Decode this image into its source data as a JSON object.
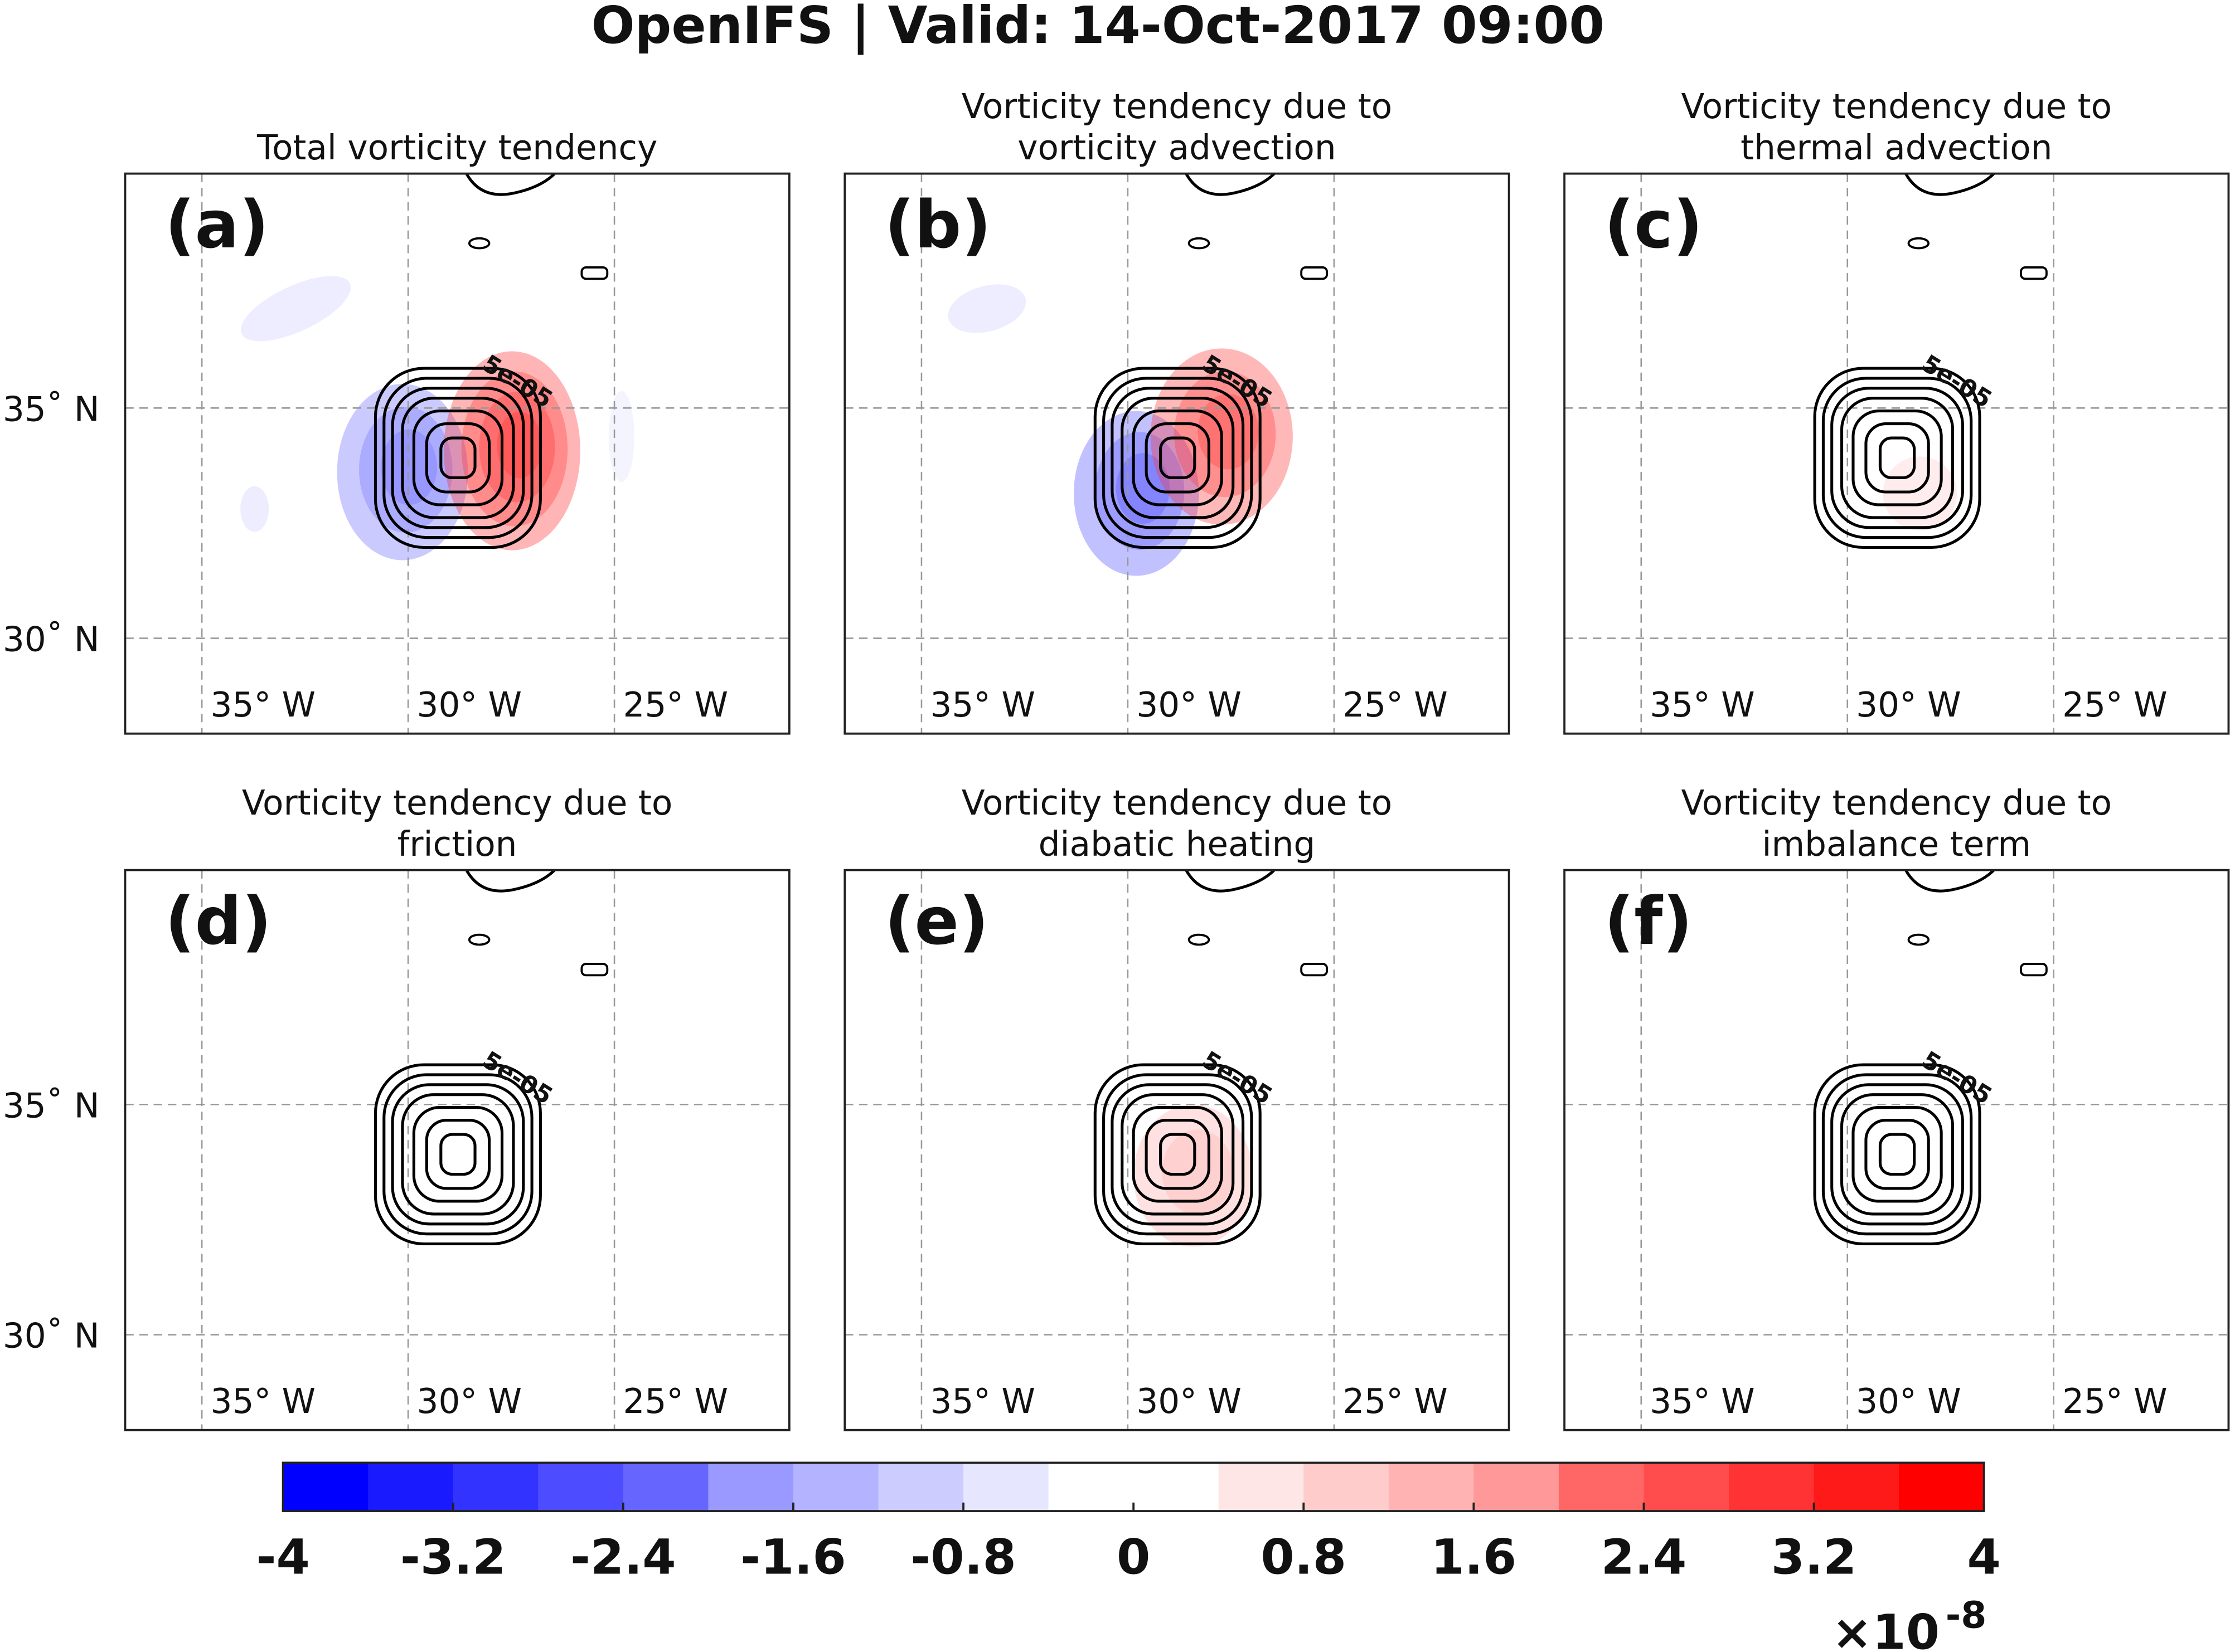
{
  "chart_data": {
    "type": "map-panels",
    "title": "OpenIFS | Valid: 14-Oct-2017 09:00",
    "panels": [
      {
        "label": "(a)",
        "title": [
          "Total vorticity tendency"
        ]
      },
      {
        "label": "(b)",
        "title": [
          "Vorticity tendency due to",
          "vorticity advection"
        ]
      },
      {
        "label": "(c)",
        "title": [
          "Vorticity tendency due to",
          "thermal advection"
        ]
      },
      {
        "label": "(d)",
        "title": [
          "Vorticity tendency due to",
          "friction"
        ]
      },
      {
        "label": "(e)",
        "title": [
          "Vorticity tendency due to",
          "diabatic heating"
        ]
      },
      {
        "label": "(f)",
        "title": [
          "Vorticity tendency due to",
          "imbalance term"
        ]
      }
    ],
    "contour_label": "5e-05",
    "xlim": [
      -36.86,
      -20.76
    ],
    "ylim": [
      27.93,
      40.09
    ],
    "xticks": [
      {
        "value": -35,
        "label": "35° W"
      },
      {
        "value": -30,
        "label": "30° W"
      },
      {
        "value": -25,
        "label": "25° W"
      }
    ],
    "yticks": [
      {
        "value": 35,
        "label": "35˚ N"
      },
      {
        "value": 30,
        "label": "30˚ N"
      }
    ],
    "grid": true,
    "colorbar": {
      "lim": [
        -4,
        4
      ],
      "ticks": [
        -4,
        -3.2,
        -2.4,
        -1.6,
        -0.8,
        0,
        0.8,
        1.6,
        2.4,
        3.2,
        4
      ],
      "colors": [
        "#0000ff",
        "#1a1aff",
        "#3333ff",
        "#4d4dff",
        "#6666ff",
        "#9999ff",
        "#b3b3ff",
        "#ccccff",
        "#e6e6ff",
        "#ffffff",
        "#ffffff",
        "#ffe6e6",
        "#ffcccc",
        "#ffb3b3",
        "#ff9999",
        "#ff6666",
        "#ff4d4d",
        "#ff3333",
        "#ff1a1a",
        "#ff0000"
      ],
      "multiplier": "×10",
      "exponent": "-8"
    }
  }
}
